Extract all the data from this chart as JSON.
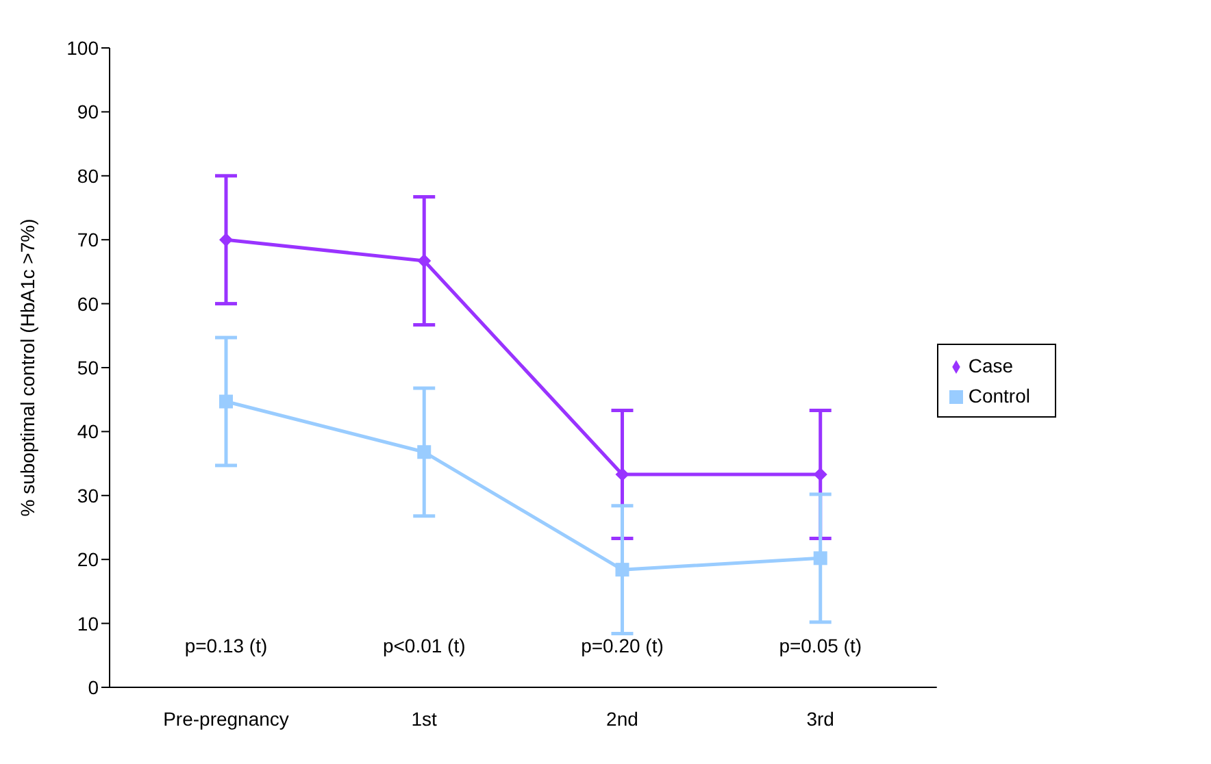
{
  "chart_data": {
    "type": "line",
    "ylabel": "% suboptimal control (HbA1c >7%)",
    "categories": [
      "Pre-pregnancy",
      "1st",
      "2nd",
      "3rd"
    ],
    "series": [
      {
        "name": "Case",
        "color": "#9933ff",
        "values": [
          70,
          66.7,
          33.3,
          33.3
        ],
        "errors": [
          10,
          10,
          10,
          10
        ],
        "marker": "diamond"
      },
      {
        "name": "Control",
        "color": "#99ccff",
        "values": [
          44.7,
          36.8,
          18.4,
          20.2
        ],
        "errors": [
          10,
          10,
          10,
          10
        ],
        "marker": "square"
      }
    ],
    "ylim": [
      0,
      100
    ],
    "yticks": [
      0,
      10,
      20,
      30,
      40,
      50,
      60,
      70,
      80,
      90,
      100
    ],
    "grid": false,
    "legend": "right",
    "annotations": [
      "p=0.13 (t)",
      "p<0.01 (t)",
      "p=0.20 (t)",
      "p=0.05 (t)"
    ]
  }
}
